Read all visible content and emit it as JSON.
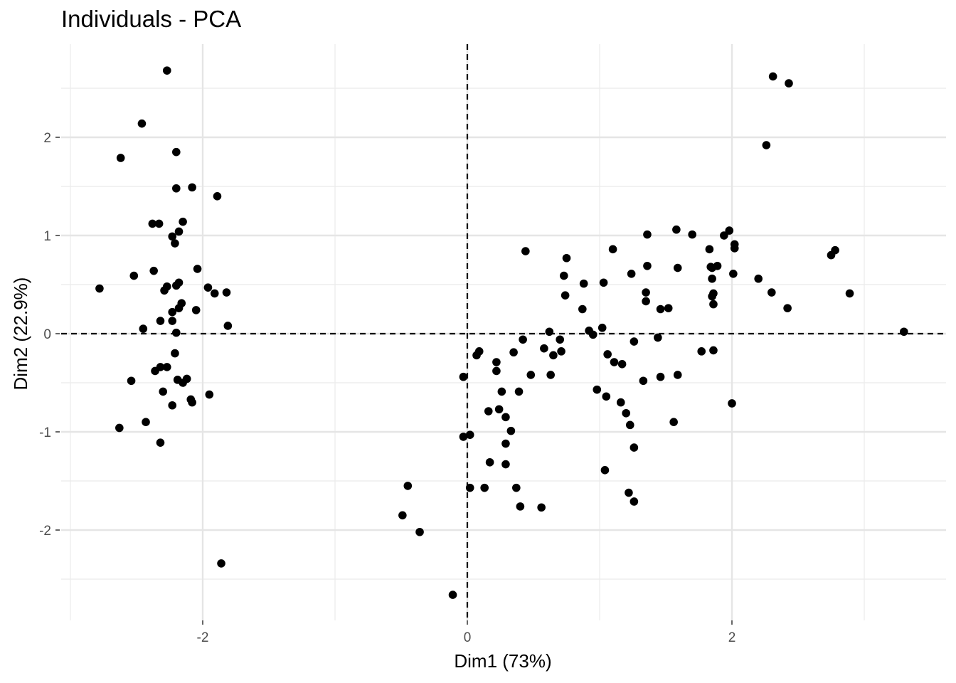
{
  "chart_data": {
    "type": "scatter",
    "title": "Individuals - PCA",
    "xlabel": "Dim1 (73%)",
    "ylabel": "Dim2 (22.9%)",
    "xlim": [
      -3.08,
      3.6
    ],
    "ylim": [
      -2.9,
      2.8
    ],
    "x_ticks": [
      -2,
      0,
      2
    ],
    "x_tick_labels": [
      "-2",
      "0",
      "2"
    ],
    "y_ticks": [
      -2,
      -1,
      0,
      1,
      2
    ],
    "y_tick_labels": [
      "-2",
      "-1",
      "0",
      "1",
      "2"
    ],
    "x_minor_ticks": [
      -3,
      -1,
      1,
      3
    ],
    "y_minor_ticks": [
      -2.5,
      -1.5,
      -0.5,
      0.5,
      1.5,
      2.5
    ],
    "grid": true,
    "reference_lines": {
      "x": 0,
      "y": 0,
      "style": "dashed"
    },
    "point_color": "#000000",
    "points": [
      [
        -2.27,
        2.68
      ],
      [
        -2.46,
        2.14
      ],
      [
        -2.62,
        1.79
      ],
      [
        -2.2,
        1.85
      ],
      [
        -2.2,
        1.48
      ],
      [
        -2.08,
        1.49
      ],
      [
        -1.89,
        1.4
      ],
      [
        -2.33,
        1.12
      ],
      [
        -2.38,
        1.12
      ],
      [
        -2.15,
        1.14
      ],
      [
        -2.18,
        1.04
      ],
      [
        -2.23,
        0.99
      ],
      [
        -2.21,
        0.92
      ],
      [
        -2.37,
        0.64
      ],
      [
        -2.52,
        0.59
      ],
      [
        -2.04,
        0.66
      ],
      [
        -2.18,
        0.52
      ],
      [
        -2.2,
        0.49
      ],
      [
        -2.27,
        0.48
      ],
      [
        -2.29,
        0.44
      ],
      [
        -1.96,
        0.47
      ],
      [
        -1.91,
        0.41
      ],
      [
        -1.82,
        0.42
      ],
      [
        -2.78,
        0.46
      ],
      [
        -2.16,
        0.31
      ],
      [
        -2.18,
        0.26
      ],
      [
        -2.23,
        0.22
      ],
      [
        -2.05,
        0.24
      ],
      [
        -2.32,
        0.13
      ],
      [
        -2.23,
        0.13
      ],
      [
        -1.81,
        0.08
      ],
      [
        -2.45,
        0.05
      ],
      [
        -2.2,
        0.01
      ],
      [
        -2.21,
        -0.2
      ],
      [
        -2.32,
        -0.34
      ],
      [
        -2.36,
        -0.38
      ],
      [
        -2.27,
        -0.34
      ],
      [
        -2.54,
        -0.48
      ],
      [
        -2.19,
        -0.47
      ],
      [
        -2.15,
        -0.5
      ],
      [
        -2.12,
        -0.46
      ],
      [
        -2.3,
        -0.59
      ],
      [
        -1.95,
        -0.62
      ],
      [
        -2.09,
        -0.67
      ],
      [
        -2.08,
        -0.7
      ],
      [
        -2.23,
        -0.73
      ],
      [
        -2.63,
        -0.96
      ],
      [
        -2.43,
        -0.9
      ],
      [
        -2.32,
        -1.11
      ],
      [
        -1.86,
        -2.34
      ],
      [
        2.31,
        2.62
      ],
      [
        2.43,
        2.55
      ],
      [
        2.26,
        1.92
      ],
      [
        1.58,
        1.06
      ],
      [
        1.7,
        1.01
      ],
      [
        1.36,
        1.01
      ],
      [
        1.98,
        1.05
      ],
      [
        1.94,
        1.0
      ],
      [
        2.02,
        0.91
      ],
      [
        2.02,
        0.87
      ],
      [
        1.83,
        0.86
      ],
      [
        1.1,
        0.86
      ],
      [
        0.44,
        0.84
      ],
      [
        0.75,
        0.77
      ],
      [
        2.75,
        0.8
      ],
      [
        2.78,
        0.85
      ],
      [
        1.84,
        0.68
      ],
      [
        1.85,
        0.67
      ],
      [
        1.89,
        0.69
      ],
      [
        1.59,
        0.67
      ],
      [
        1.36,
        0.69
      ],
      [
        0.73,
        0.59
      ],
      [
        1.24,
        0.61
      ],
      [
        2.01,
        0.61
      ],
      [
        2.2,
        0.56
      ],
      [
        1.85,
        0.56
      ],
      [
        1.03,
        0.52
      ],
      [
        0.88,
        0.51
      ],
      [
        1.35,
        0.42
      ],
      [
        1.86,
        0.41
      ],
      [
        2.3,
        0.42
      ],
      [
        2.89,
        0.41
      ],
      [
        0.74,
        0.39
      ],
      [
        1.85,
        0.38
      ],
      [
        1.35,
        0.33
      ],
      [
        1.46,
        0.25
      ],
      [
        1.52,
        0.26
      ],
      [
        1.86,
        0.3
      ],
      [
        2.42,
        0.26
      ],
      [
        0.87,
        0.25
      ],
      [
        1.02,
        0.06
      ],
      [
        0.92,
        0.03
      ],
      [
        0.62,
        0.02
      ],
      [
        0.95,
        -0.01
      ],
      [
        3.3,
        0.02
      ],
      [
        0.42,
        -0.06
      ],
      [
        0.7,
        -0.06
      ],
      [
        1.26,
        -0.08
      ],
      [
        1.44,
        -0.04
      ],
      [
        0.58,
        -0.15
      ],
      [
        0.71,
        -0.18
      ],
      [
        0.65,
        -0.22
      ],
      [
        1.06,
        -0.21
      ],
      [
        1.77,
        -0.18
      ],
      [
        1.86,
        -0.17
      ],
      [
        0.35,
        -0.19
      ],
      [
        0.09,
        -0.18
      ],
      [
        0.07,
        -0.22
      ],
      [
        0.22,
        -0.29
      ],
      [
        1.11,
        -0.29
      ],
      [
        1.17,
        -0.31
      ],
      [
        0.22,
        -0.38
      ],
      [
        0.48,
        -0.42
      ],
      [
        0.63,
        -0.42
      ],
      [
        1.46,
        -0.44
      ],
      [
        1.59,
        -0.42
      ],
      [
        1.33,
        -0.48
      ],
      [
        -0.03,
        -0.44
      ],
      [
        0.26,
        -0.59
      ],
      [
        0.39,
        -0.59
      ],
      [
        0.98,
        -0.57
      ],
      [
        1.05,
        -0.64
      ],
      [
        1.16,
        -0.7
      ],
      [
        2.0,
        -0.71
      ],
      [
        0.24,
        -0.77
      ],
      [
        0.16,
        -0.79
      ],
      [
        1.2,
        -0.81
      ],
      [
        0.29,
        -0.85
      ],
      [
        1.56,
        -0.9
      ],
      [
        1.23,
        -0.93
      ],
      [
        0.33,
        -0.99
      ],
      [
        0.02,
        -1.03
      ],
      [
        -0.03,
        -1.05
      ],
      [
        0.29,
        -1.12
      ],
      [
        1.26,
        -1.16
      ],
      [
        0.17,
        -1.31
      ],
      [
        0.29,
        -1.33
      ],
      [
        1.04,
        -1.39
      ],
      [
        -0.45,
        -1.55
      ],
      [
        0.02,
        -1.57
      ],
      [
        0.13,
        -1.57
      ],
      [
        0.37,
        -1.57
      ],
      [
        1.22,
        -1.62
      ],
      [
        0.4,
        -1.76
      ],
      [
        0.56,
        -1.77
      ],
      [
        1.26,
        -1.71
      ],
      [
        -0.49,
        -1.85
      ],
      [
        -0.36,
        -2.02
      ],
      [
        -0.11,
        -2.66
      ]
    ]
  }
}
